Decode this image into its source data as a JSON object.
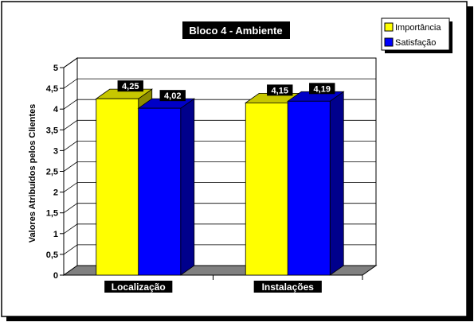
{
  "chart_data": {
    "type": "bar",
    "title": "Bloco 4 - Ambiente",
    "ylabel": "Valores Atribuídos pelos Clientes",
    "xlabel": "",
    "categories": [
      "Localização",
      "Instalações"
    ],
    "series": [
      {
        "name": "Importância",
        "values": [
          4.25,
          4.15
        ],
        "labels": [
          "4,25",
          "4,15"
        ],
        "color": "#ffff00"
      },
      {
        "name": "Satisfação",
        "values": [
          4.02,
          4.19
        ],
        "labels": [
          "4,02",
          "4,19"
        ],
        "color": "#0000ff"
      }
    ],
    "ylim": [
      0,
      5
    ],
    "yticks": [
      "0",
      "0,5",
      "1",
      "1,5",
      "2",
      "2,5",
      "3",
      "3,5",
      "4",
      "4,5",
      "5"
    ],
    "grid": true,
    "legend": "top-right",
    "style": "3d-clustered"
  }
}
